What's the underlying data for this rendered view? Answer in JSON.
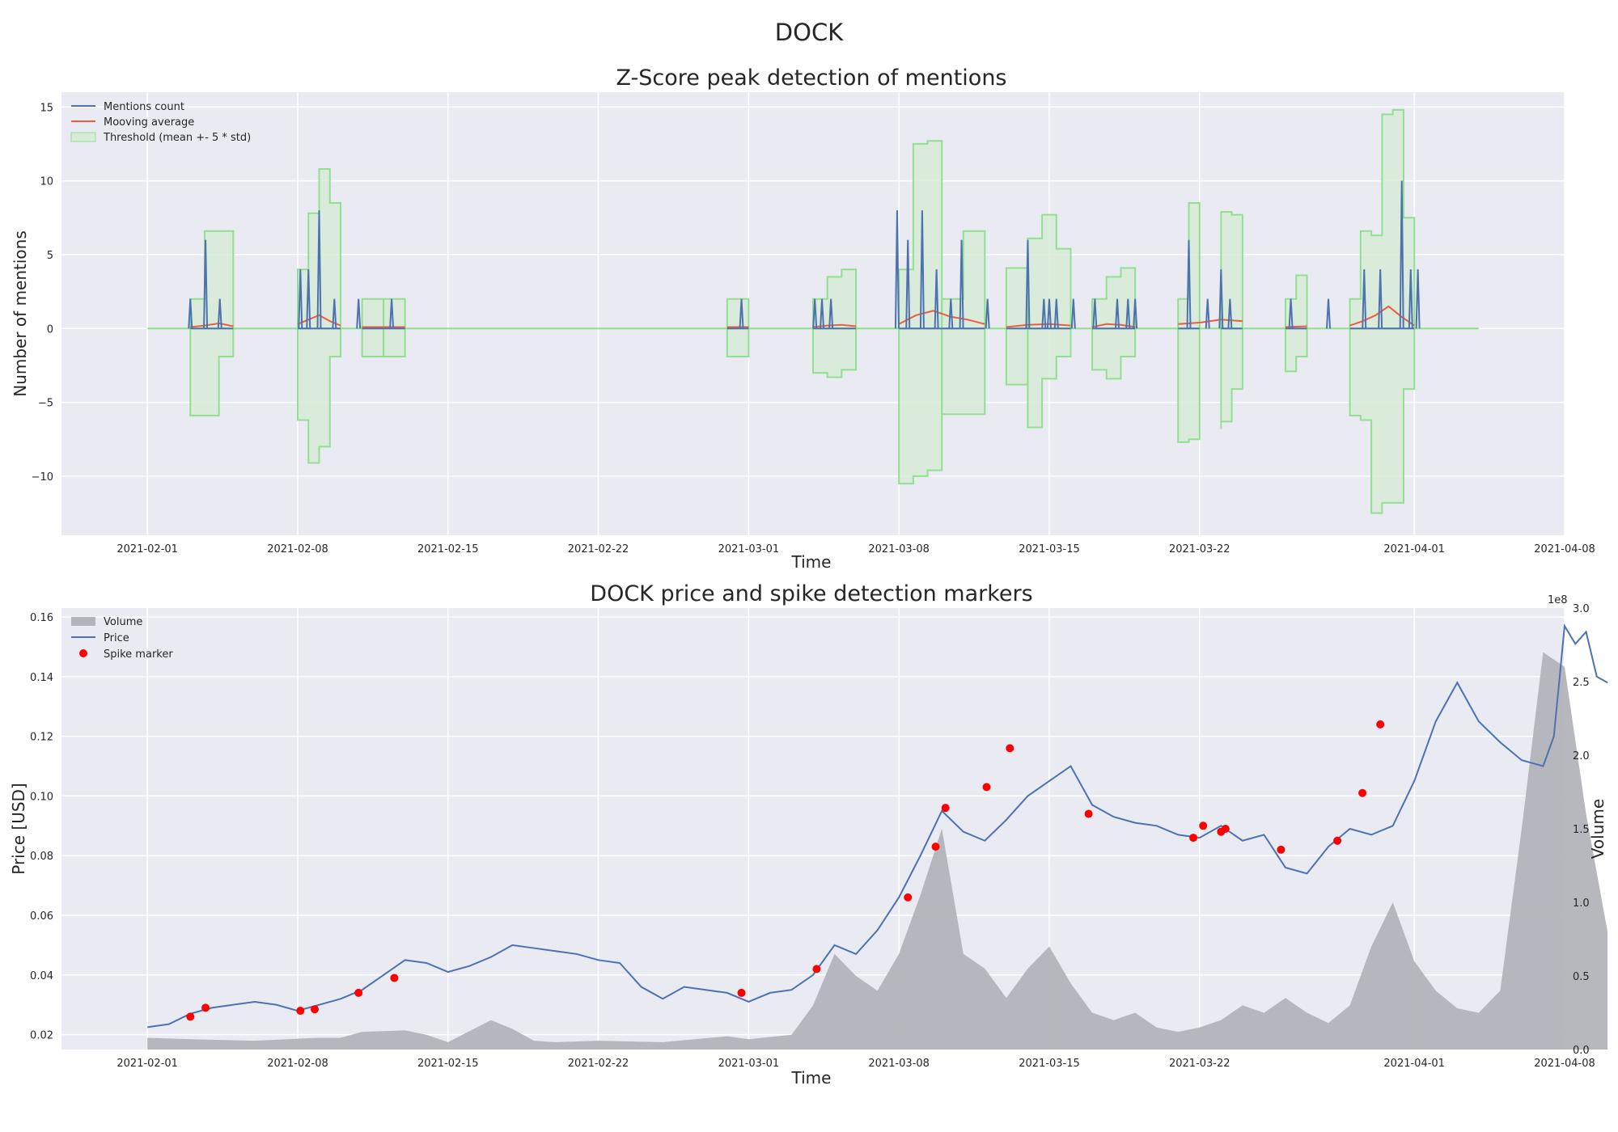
{
  "figure": {
    "suptitle": "DOCK"
  },
  "colors": {
    "axes_bg": "#eaeaf2",
    "grid": "#ffffff",
    "mentions": "#4c72b0",
    "moving_avg": "#f05a40",
    "threshold_line": "#90e090",
    "threshold_fill": "#d7ebd7",
    "volume": "#b3b3bb",
    "price": "#4c72b0",
    "spike": "#ff0000"
  },
  "chart_data": [
    {
      "type": "line",
      "title": "Z-Score peak detection of mentions",
      "xlabel": "Time",
      "ylabel": "Number of mentions",
      "x_ticks": [
        "2021-02-01",
        "2021-02-08",
        "2021-02-15",
        "2021-02-22",
        "2021-03-01",
        "2021-03-08",
        "2021-03-15",
        "2021-03-22",
        "2021-04-01",
        "2021-04-08"
      ],
      "y_ticks": [
        "15",
        "10",
        "5",
        "0",
        "−5",
        "−10"
      ],
      "xlim": [
        "2021-01-28",
        "2021-04-08"
      ],
      "ylim": [
        -14,
        16
      ],
      "grid": true,
      "legend_position": "top-left",
      "legend": {
        "mentions": "Mentions count",
        "moving_avg": "Mooving average",
        "threshold": "Threshold (mean +- 5 * std)"
      },
      "x_range": [
        "2021-02-01",
        "2021-04-04"
      ],
      "threshold_bands": [
        {
          "start": "2021-02-03",
          "end": "2021-02-05",
          "upper": [
            2,
            6.6,
            6.6,
            2
          ],
          "lower": [
            -1.9,
            -5.9,
            -5.9,
            -1.9
          ]
        },
        {
          "start": "2021-02-08",
          "end": "2021-02-10",
          "upper": [
            4,
            7.8,
            10.8,
            8.5,
            2
          ],
          "lower": [
            -3.5,
            -6.2,
            -9.1,
            -8,
            -1.9
          ]
        },
        {
          "start": "2021-02-11",
          "end": "2021-02-12",
          "upper": [
            2,
            2
          ],
          "lower": [
            -1.9,
            -1.9
          ]
        },
        {
          "start": "2021-02-12",
          "end": "2021-02-13",
          "upper": [
            2,
            2
          ],
          "lower": [
            -1.9,
            -1.9
          ]
        },
        {
          "start": "2021-02-28",
          "end": "2021-03-01",
          "upper": [
            2,
            2
          ],
          "lower": [
            -1.9,
            -1.9
          ]
        },
        {
          "start": "2021-03-04",
          "end": "2021-03-06",
          "upper": [
            2,
            3.5,
            4,
            3
          ],
          "lower": [
            -1.9,
            -3,
            -3.3,
            -2.8
          ]
        },
        {
          "start": "2021-03-08",
          "end": "2021-03-10",
          "upper": [
            4,
            12.5,
            12.7,
            6.5
          ],
          "lower": [
            -3.5,
            -10.5,
            -10,
            -9.6
          ]
        },
        {
          "start": "2021-03-10",
          "end": "2021-03-12",
          "upper": [
            2,
            6.6,
            6.2
          ],
          "lower": [
            -1.9,
            -5.8,
            -5.8
          ]
        },
        {
          "start": "2021-03-13",
          "end": "2021-03-14",
          "upper": [
            4.1,
            4.1
          ],
          "lower": [
            -3.8,
            -3.8
          ]
        },
        {
          "start": "2021-03-14",
          "end": "2021-03-16",
          "upper": [
            6.1,
            7.7,
            5.4,
            2
          ],
          "lower": [
            -5.7,
            -6.7,
            -3.4,
            -1.9
          ]
        },
        {
          "start": "2021-03-17",
          "end": "2021-03-19",
          "upper": [
            2,
            3.5,
            4.1,
            2
          ],
          "lower": [
            -1.9,
            -2.8,
            -3.4,
            -1.9
          ]
        },
        {
          "start": "2021-03-21",
          "end": "2021-03-22",
          "upper": [
            2,
            8.5,
            8.2
          ],
          "lower": [
            -1.9,
            -7.7,
            -7.5
          ]
        },
        {
          "start": "2021-03-23",
          "end": "2021-03-24",
          "upper": [
            7.9,
            7.7,
            4.2
          ],
          "lower": [
            -6.8,
            -6.3,
            -4.1
          ]
        },
        {
          "start": "2021-03-26",
          "end": "2021-03-27",
          "upper": [
            2,
            3.6,
            2
          ],
          "lower": [
            -1.9,
            -2.9,
            -1.9
          ]
        },
        {
          "start": "2021-03-29",
          "end": "2021-04-01",
          "upper": [
            2,
            6.6,
            6.3,
            14.5,
            14.8,
            7.5,
            4.2
          ],
          "lower": [
            -1.9,
            -5.9,
            -6.2,
            -12.5,
            -11.8,
            -11.8,
            -4.1
          ]
        }
      ],
      "mention_spikes": [
        {
          "x": "2021-02-03T00:00",
          "y": 2
        },
        {
          "x": "2021-02-03T17:00",
          "y": 6
        },
        {
          "x": "2021-02-04T09:00",
          "y": 2
        },
        {
          "x": "2021-02-08T03:00",
          "y": 4
        },
        {
          "x": "2021-02-08T12:00",
          "y": 4
        },
        {
          "x": "2021-02-09T00:00",
          "y": 8
        },
        {
          "x": "2021-02-09T17:00",
          "y": 2
        },
        {
          "x": "2021-02-10T20:00",
          "y": 2
        },
        {
          "x": "2021-02-12T09:00",
          "y": 2
        },
        {
          "x": "2021-02-28T16:00",
          "y": 2
        },
        {
          "x": "2021-03-04T02:00",
          "y": 2
        },
        {
          "x": "2021-03-04T10:00",
          "y": 2
        },
        {
          "x": "2021-03-04T20:00",
          "y": 2
        },
        {
          "x": "2021-03-07T22:00",
          "y": 8
        },
        {
          "x": "2021-03-08T10:00",
          "y": 6
        },
        {
          "x": "2021-03-09T02:00",
          "y": 8
        },
        {
          "x": "2021-03-09T18:00",
          "y": 4
        },
        {
          "x": "2021-03-10T10:00",
          "y": 2
        },
        {
          "x": "2021-03-10T22:00",
          "y": 6
        },
        {
          "x": "2021-03-12T03:00",
          "y": 2
        },
        {
          "x": "2021-03-14T00:00",
          "y": 6
        },
        {
          "x": "2021-03-14T18:00",
          "y": 2
        },
        {
          "x": "2021-03-15T00:00",
          "y": 2
        },
        {
          "x": "2021-03-15T08:00",
          "y": 2
        },
        {
          "x": "2021-03-16T03:00",
          "y": 2
        },
        {
          "x": "2021-03-17T03:00",
          "y": 2
        },
        {
          "x": "2021-03-18T04:00",
          "y": 2
        },
        {
          "x": "2021-03-18T16:00",
          "y": 2
        },
        {
          "x": "2021-03-19T00:00",
          "y": 2
        },
        {
          "x": "2021-03-21T12:00",
          "y": 6
        },
        {
          "x": "2021-03-22T09:00",
          "y": 2
        },
        {
          "x": "2021-03-23T00:00",
          "y": 4
        },
        {
          "x": "2021-03-23T10:00",
          "y": 2
        },
        {
          "x": "2021-03-26T06:00",
          "y": 2
        },
        {
          "x": "2021-03-28T00:00",
          "y": 2
        },
        {
          "x": "2021-03-29T16:00",
          "y": 4
        },
        {
          "x": "2021-03-30T10:00",
          "y": 4
        },
        {
          "x": "2021-03-31T10:00",
          "y": 10
        },
        {
          "x": "2021-03-31T20:00",
          "y": 4
        },
        {
          "x": "2021-04-01T04:00",
          "y": 4
        }
      ],
      "moving_average_segments": [
        {
          "start": "2021-02-03",
          "end": "2021-02-05",
          "values": [
            0.1,
            0.2,
            0.35,
            0.15
          ]
        },
        {
          "start": "2021-02-08",
          "end": "2021-02-10",
          "values": [
            0.3,
            0.6,
            0.9,
            0.5,
            0.2
          ]
        },
        {
          "start": "2021-02-11",
          "end": "2021-02-12",
          "values": [
            0.1,
            0.1
          ]
        },
        {
          "start": "2021-02-12",
          "end": "2021-02-13",
          "values": [
            0.1,
            0.1
          ]
        },
        {
          "start": "2021-02-28",
          "end": "2021-03-01",
          "values": [
            0.1,
            0.1
          ]
        },
        {
          "start": "2021-03-04",
          "end": "2021-03-06",
          "values": [
            0.1,
            0.2,
            0.25,
            0.15
          ]
        },
        {
          "start": "2021-03-08",
          "end": "2021-03-12",
          "values": [
            0.3,
            0.9,
            1.2,
            0.8,
            0.6,
            0.3
          ]
        },
        {
          "start": "2021-03-13",
          "end": "2021-03-16",
          "values": [
            0.1,
            0.25,
            0.3,
            0.2
          ]
        },
        {
          "start": "2021-03-17",
          "end": "2021-03-19",
          "values": [
            0.1,
            0.3,
            0.25,
            0.1
          ]
        },
        {
          "start": "2021-03-21",
          "end": "2021-03-24",
          "values": [
            0.3,
            0.4,
            0.6,
            0.5
          ]
        },
        {
          "start": "2021-03-26",
          "end": "2021-03-27",
          "values": [
            0.1,
            0.15
          ]
        },
        {
          "start": "2021-03-29",
          "end": "2021-04-01",
          "values": [
            0.2,
            0.5,
            0.9,
            1.5,
            0.8,
            0.2
          ]
        }
      ]
    },
    {
      "type": "line",
      "title": "DOCK price and spike detection markers",
      "xlabel": "Time",
      "ylabel": "Price [USD]",
      "y2label": "Volume",
      "y2_offset_label": "1e8",
      "x_ticks": [
        "2021-02-01",
        "2021-02-08",
        "2021-02-15",
        "2021-02-22",
        "2021-03-01",
        "2021-03-08",
        "2021-03-15",
        "2021-03-22",
        "2021-04-01",
        "2021-04-08"
      ],
      "y_ticks": [
        "0.16",
        "0.14",
        "0.12",
        "0.10",
        "0.08",
        "0.06",
        "0.04",
        "0.02"
      ],
      "y2_ticks": [
        "3.0",
        "2.5",
        "2.0",
        "1.5",
        "1.0",
        "0.5",
        "0.0"
      ],
      "xlim": [
        "2021-01-28",
        "2021-04-08"
      ],
      "ylim": [
        0.015,
        0.163
      ],
      "y2lim": [
        0,
        3.0
      ],
      "grid": true,
      "legend_position": "top-left",
      "legend": {
        "volume": "Volume",
        "price": "Price",
        "spike": "Spike marker"
      },
      "price": {
        "x": [
          "2021-02-01",
          "2021-02-02",
          "2021-02-03",
          "2021-02-04",
          "2021-02-05",
          "2021-02-06",
          "2021-02-07",
          "2021-02-08",
          "2021-02-09",
          "2021-02-10",
          "2021-02-11",
          "2021-02-12",
          "2021-02-13",
          "2021-02-14",
          "2021-02-15",
          "2021-02-16",
          "2021-02-17",
          "2021-02-18",
          "2021-02-19",
          "2021-02-20",
          "2021-02-21",
          "2021-02-22",
          "2021-02-23",
          "2021-02-24",
          "2021-02-25",
          "2021-02-26",
          "2021-02-27",
          "2021-02-28",
          "2021-03-01",
          "2021-03-02",
          "2021-03-03",
          "2021-03-04",
          "2021-03-05",
          "2021-03-06",
          "2021-03-07",
          "2021-03-08",
          "2021-03-09",
          "2021-03-10",
          "2021-03-11",
          "2021-03-12",
          "2021-03-13",
          "2021-03-14",
          "2021-03-15",
          "2021-03-16",
          "2021-03-17",
          "2021-03-18",
          "2021-03-19",
          "2021-03-20",
          "2021-03-21",
          "2021-03-22",
          "2021-03-23",
          "2021-03-24",
          "2021-03-25",
          "2021-03-26",
          "2021-03-27",
          "2021-03-28",
          "2021-03-29",
          "2021-03-30",
          "2021-03-31",
          "2021-04-01",
          "2021-04-02",
          "2021-04-03",
          "2021-04-04",
          "2021-04-05",
          "2021-04-06",
          "2021-04-07"
        ],
        "y": [
          0.0225,
          0.0235,
          0.027,
          0.029,
          0.03,
          0.031,
          0.03,
          0.028,
          0.03,
          0.032,
          0.035,
          0.04,
          0.045,
          0.044,
          0.041,
          0.043,
          0.046,
          0.05,
          0.049,
          0.048,
          0.047,
          0.045,
          0.044,
          0.036,
          0.032,
          0.036,
          0.035,
          0.034,
          0.031,
          0.034,
          0.035,
          0.04,
          0.05,
          0.047,
          0.055,
          0.066,
          0.08,
          0.095,
          0.088,
          0.085,
          0.092,
          0.1,
          0.105,
          0.11,
          0.097,
          0.093,
          0.091,
          0.09,
          0.087,
          0.086,
          0.09,
          0.085,
          0.087,
          0.076,
          0.074,
          0.083,
          0.089,
          0.087,
          0.09,
          0.105,
          0.125,
          0.138,
          0.125,
          0.118,
          0.112,
          0.11
        ]
      },
      "price_tail": {
        "x": [
          "2021-04-07",
          "2021-04-07T12:00",
          "2021-04-08",
          "2021-04-08T12:00",
          "2021-04-09",
          "2021-04-09T12:00",
          "2021-04-10"
        ],
        "y": [
          0.11,
          0.12,
          0.157,
          0.151,
          0.155,
          0.14,
          0.138
        ]
      },
      "volume": {
        "x": [
          "2021-02-01",
          "2021-02-03",
          "2021-02-06",
          "2021-02-09",
          "2021-02-10",
          "2021-02-11",
          "2021-02-13",
          "2021-02-14",
          "2021-02-15",
          "2021-02-17",
          "2021-02-18",
          "2021-02-19",
          "2021-02-20",
          "2021-02-22",
          "2021-02-25",
          "2021-02-28",
          "2021-03-01",
          "2021-03-03",
          "2021-03-04",
          "2021-03-05",
          "2021-03-06",
          "2021-03-07",
          "2021-03-08",
          "2021-03-09",
          "2021-03-10",
          "2021-03-11",
          "2021-03-12",
          "2021-03-13",
          "2021-03-14",
          "2021-03-15",
          "2021-03-16",
          "2021-03-17",
          "2021-03-18",
          "2021-03-19",
          "2021-03-20",
          "2021-03-21",
          "2021-03-22",
          "2021-03-23",
          "2021-03-24",
          "2021-03-25",
          "2021-03-26",
          "2021-03-27",
          "2021-03-28",
          "2021-03-29",
          "2021-03-30",
          "2021-03-31",
          "2021-04-01",
          "2021-04-02",
          "2021-04-03",
          "2021-04-04",
          "2021-04-05",
          "2021-04-06",
          "2021-04-07",
          "2021-04-08",
          "2021-04-09",
          "2021-04-10"
        ],
        "y": [
          0.08,
          0.07,
          0.06,
          0.08,
          0.08,
          0.12,
          0.13,
          0.1,
          0.05,
          0.2,
          0.14,
          0.06,
          0.05,
          0.06,
          0.05,
          0.09,
          0.07,
          0.1,
          0.3,
          0.65,
          0.5,
          0.4,
          0.65,
          1.05,
          1.5,
          0.65,
          0.55,
          0.35,
          0.55,
          0.7,
          0.45,
          0.25,
          0.2,
          0.25,
          0.15,
          0.12,
          0.15,
          0.2,
          0.3,
          0.25,
          0.35,
          0.25,
          0.18,
          0.3,
          0.7,
          1.0,
          0.6,
          0.4,
          0.28,
          0.25,
          0.4,
          1.5,
          2.7,
          2.6,
          1.6,
          0.8
        ]
      },
      "spikes": {
        "x": [
          "2021-02-03",
          "2021-02-03T17:00",
          "2021-02-08T03:00",
          "2021-02-08T19:00",
          "2021-02-10T20:00",
          "2021-02-12T12:00",
          "2021-02-28T16:00",
          "2021-03-04T04:00",
          "2021-03-08T10:00",
          "2021-03-09T17:00",
          "2021-03-10T04:00",
          "2021-03-12T02:00",
          "2021-03-13T04:00",
          "2021-03-16T20:00",
          "2021-03-21T17:00",
          "2021-03-22T04:00",
          "2021-03-23T00:00",
          "2021-03-23T05:00",
          "2021-03-25T19:00",
          "2021-03-28T10:00",
          "2021-03-29T14:00",
          "2021-03-30T10:00"
        ],
        "y": [
          0.026,
          0.029,
          0.028,
          0.0285,
          0.034,
          0.039,
          0.034,
          0.042,
          0.066,
          0.083,
          0.096,
          0.103,
          0.116,
          0.094,
          0.086,
          0.09,
          0.088,
          0.089,
          0.082,
          0.085,
          0.101,
          0.124
        ]
      }
    }
  ]
}
